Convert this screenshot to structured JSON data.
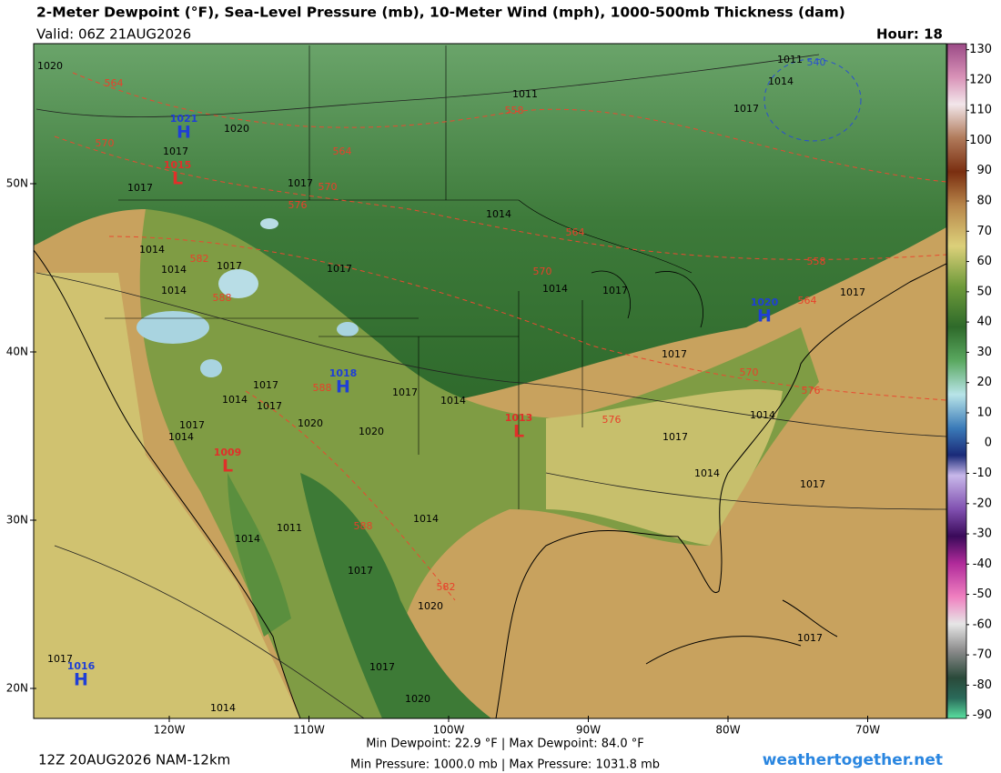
{
  "header": {
    "title": "2-Meter Dewpoint (°F), Sea-Level Pressure (mb), 10-Meter Wind (mph), 1000-500mb Thickness (dam)",
    "valid": "Valid: 06Z 21AUG2026",
    "hour": "Hour: 18"
  },
  "map": {
    "lat_ticks": [
      {
        "value": 50,
        "label": "50N"
      },
      {
        "value": 40,
        "label": "40N"
      },
      {
        "value": 30,
        "label": "30N"
      },
      {
        "value": 20,
        "label": "20N"
      }
    ],
    "lon_ticks": [
      {
        "value": -120,
        "label": "120W"
      },
      {
        "value": -110,
        "label": "110W"
      },
      {
        "value": -100,
        "label": "100W"
      },
      {
        "value": -90,
        "label": "90W"
      },
      {
        "value": -80,
        "label": "80W"
      },
      {
        "value": -70,
        "label": "70W"
      }
    ],
    "pressure_centers": [
      {
        "type": "H",
        "value": 1021,
        "color": "#1f3fd6"
      },
      {
        "type": "L",
        "value": 1015,
        "color": "#e0302a"
      },
      {
        "type": "H",
        "value": 1020,
        "color": "#1f3fd6"
      },
      {
        "type": "H",
        "value": 1018,
        "color": "#1f3fd6"
      },
      {
        "type": "L",
        "value": 1013,
        "color": "#e0302a"
      },
      {
        "type": "L",
        "value": 1009,
        "color": "#e0302a"
      },
      {
        "type": "H",
        "value": 1016,
        "color": "#1f3fd6"
      }
    ],
    "isobar_labels": [
      1020,
      1011,
      1020,
      1017,
      1017,
      1017,
      1014,
      1014,
      1014,
      1017,
      1017,
      1014,
      1014,
      1017,
      1017,
      1014,
      1017,
      1017,
      1017,
      1014,
      1020,
      1020,
      1017,
      1014,
      1014,
      1017,
      1014,
      1017,
      1011,
      1014,
      1014,
      1017,
      1020,
      1017,
      1020,
      1017,
      1014,
      1017,
      1011,
      1014,
      1017,
      1017
    ],
    "thickness_labels": [
      564,
      558,
      570,
      564,
      570,
      576,
      582,
      588,
      564,
      570,
      558,
      564,
      570,
      576,
      576,
      588,
      582,
      588,
      540
    ]
  },
  "colorbar": {
    "lim": [
      -91,
      132
    ],
    "ticks": [
      130,
      120,
      110,
      100,
      90,
      80,
      70,
      60,
      50,
      40,
      30,
      20,
      10,
      0,
      -10,
      -20,
      -30,
      -40,
      -50,
      -60,
      -70,
      -80,
      -90
    ]
  },
  "footer": {
    "run": "12Z 20AUG2026 NAM-12km",
    "dewpoint_range": "Min Dewpoint:  22.9 °F | Max Dewpoint:  84.0 °F",
    "pressure_range": "Min Pressure: 1000.0 mb | Max Pressure: 1031.8 mb",
    "source": "weathertogether.net"
  }
}
